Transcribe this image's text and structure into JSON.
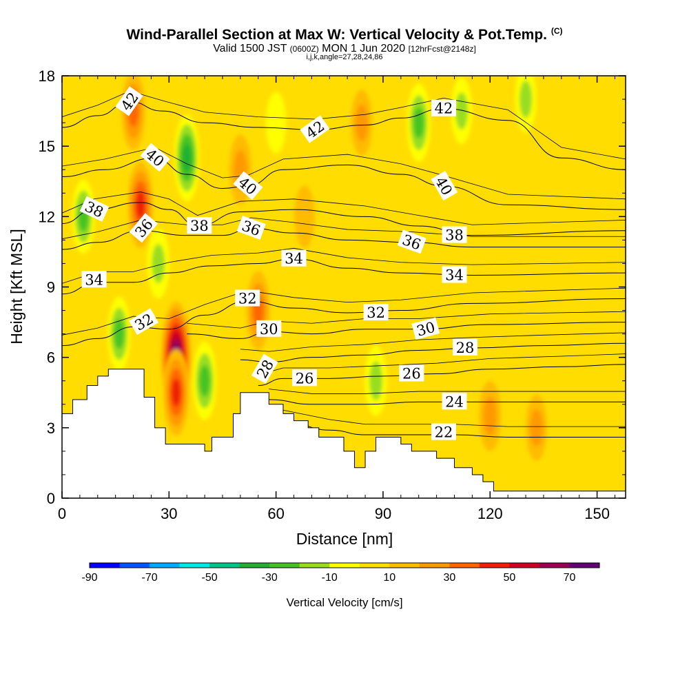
{
  "header": {
    "title": "Wind-Parallel Section at Max W: Vertical Velocity & Pot.Temp.",
    "title_units": "(C)",
    "valid_prefix": "Valid 1500 JST",
    "valid_utc": "(0600Z)",
    "valid_date": "MON 1 Jun 2020",
    "forecast_info": "[12hrFcst@2148z]",
    "section_params": "i,j,k,angle=27,28,24,86"
  },
  "chart_data": {
    "type": "heatmap",
    "xlabel": "Distance [nm]",
    "ylabel": "Height [Kft MSL]",
    "xlim": [
      0,
      158
    ],
    "ylim": [
      0,
      18
    ],
    "x_ticks": [
      "0",
      "30",
      "60",
      "90",
      "120",
      "150"
    ],
    "x_tick_values": [
      0,
      30,
      60,
      90,
      120,
      150
    ],
    "y_ticks": [
      "0",
      "3",
      "6",
      "9",
      "12",
      "15",
      "18"
    ],
    "y_tick_values": [
      0,
      3,
      6,
      9,
      12,
      15,
      18
    ],
    "fill_variable": "Vertical Velocity [cm/s]",
    "contour_variable": "Potential Temperature (C)",
    "colorbar": {
      "title": "Vertical Velocity [cm/s]",
      "tick_labels": [
        "-90",
        "-70",
        "-50",
        "-30",
        "-10",
        "10",
        "30",
        "50",
        "70"
      ],
      "tick_values": [
        -90,
        -70,
        -50,
        -30,
        -10,
        10,
        30,
        50,
        70
      ],
      "colors": [
        "#0000ff",
        "#0055ff",
        "#00aaff",
        "#00e5e5",
        "#00c48a",
        "#22b033",
        "#44c422",
        "#99dd22",
        "#ffff00",
        "#ffdd00",
        "#ffbb00",
        "#ff9900",
        "#ff6600",
        "#ee2200",
        "#cc0022",
        "#990055",
        "#660077"
      ]
    },
    "terrain_profile": {
      "x": [
        0,
        3,
        7,
        10,
        13,
        16,
        20,
        23,
        26,
        29,
        32,
        35,
        40,
        42,
        45,
        48,
        50,
        55,
        58,
        62,
        65,
        69,
        72,
        75,
        79,
        82,
        85,
        88,
        92,
        95,
        98,
        102,
        105,
        110,
        115,
        118,
        121,
        124,
        127,
        130,
        135,
        140,
        145,
        150,
        158
      ],
      "height_kft": [
        3.6,
        4.2,
        4.8,
        5.2,
        5.5,
        5.5,
        5.5,
        4.3,
        3.0,
        2.3,
        2.3,
        2.3,
        2.0,
        2.6,
        2.6,
        3.6,
        4.5,
        4.5,
        4.0,
        3.6,
        3.3,
        3.0,
        2.6,
        2.6,
        2.0,
        1.3,
        2.0,
        2.6,
        2.6,
        2.3,
        2.0,
        2.0,
        1.7,
        1.3,
        1.0,
        0.7,
        0.3,
        0.3,
        0.3,
        0.3,
        0.3,
        0.3,
        0.3,
        0.3,
        0.3
      ]
    },
    "velocity_features": [
      {
        "x": 32,
        "y": 6.0,
        "value": 75
      },
      {
        "x": 32,
        "y": 4.5,
        "value": 45
      },
      {
        "x": 22,
        "y": 12.5,
        "value": 45
      },
      {
        "x": 20,
        "y": 16.5,
        "value": 35
      },
      {
        "x": 55,
        "y": 8.0,
        "value": 35
      },
      {
        "x": 50,
        "y": 14.0,
        "value": 25
      },
      {
        "x": 120,
        "y": 3.5,
        "value": 25
      },
      {
        "x": 133,
        "y": 3.0,
        "value": 20
      },
      {
        "x": 84,
        "y": 16.0,
        "value": 20
      },
      {
        "x": 68,
        "y": 12.0,
        "value": 15
      },
      {
        "x": 35,
        "y": 14.5,
        "value": -45
      },
      {
        "x": 27,
        "y": 10.0,
        "value": -25
      },
      {
        "x": 40,
        "y": 5.0,
        "value": -35
      },
      {
        "x": 6,
        "y": 12.0,
        "value": -30
      },
      {
        "x": 16,
        "y": 7.0,
        "value": -30
      },
      {
        "x": 100,
        "y": 16.0,
        "value": -35
      },
      {
        "x": 112,
        "y": 16.5,
        "value": -20
      },
      {
        "x": 130,
        "y": 17.0,
        "value": -20
      },
      {
        "x": 88,
        "y": 5.0,
        "value": -25
      },
      {
        "x": 60,
        "y": 16.0,
        "value": -15
      }
    ],
    "contour_labels": [
      {
        "text": "42",
        "x": 19,
        "y": 16.9,
        "angle": -55
      },
      {
        "text": "40",
        "x": 26,
        "y": 14.5,
        "angle": 40
      },
      {
        "text": "38",
        "x": 9,
        "y": 12.3,
        "angle": 25
      },
      {
        "text": "36",
        "x": 23,
        "y": 11.5,
        "angle": -50
      },
      {
        "text": "34",
        "x": 9,
        "y": 9.3,
        "angle": 0
      },
      {
        "text": "32",
        "x": 23,
        "y": 7.5,
        "angle": -30
      },
      {
        "text": "38",
        "x": 38.5,
        "y": 11.6,
        "angle": 0
      },
      {
        "text": "40",
        "x": 52,
        "y": 13.3,
        "angle": 40
      },
      {
        "text": "36",
        "x": 53,
        "y": 11.5,
        "angle": 20
      },
      {
        "text": "42",
        "x": 71,
        "y": 15.7,
        "angle": -35
      },
      {
        "text": "32",
        "x": 52,
        "y": 8.5,
        "angle": 0
      },
      {
        "text": "34",
        "x": 65,
        "y": 10.2,
        "angle": 0
      },
      {
        "text": "30",
        "x": 58,
        "y": 7.2,
        "angle": 0
      },
      {
        "text": "28",
        "x": 57,
        "y": 5.5,
        "angle": -60
      },
      {
        "text": "26",
        "x": 68,
        "y": 5.1,
        "angle": 0
      },
      {
        "text": "32",
        "x": 88,
        "y": 7.9,
        "angle": 0
      },
      {
        "text": "36",
        "x": 98,
        "y": 10.9,
        "angle": 20
      },
      {
        "text": "42",
        "x": 107,
        "y": 16.6,
        "angle": 0
      },
      {
        "text": "40",
        "x": 107,
        "y": 13.3,
        "angle": 60
      },
      {
        "text": "38",
        "x": 110,
        "y": 11.2,
        "angle": 0
      },
      {
        "text": "34",
        "x": 110,
        "y": 9.5,
        "angle": 0
      },
      {
        "text": "30",
        "x": 102,
        "y": 7.2,
        "angle": -15
      },
      {
        "text": "28",
        "x": 113,
        "y": 6.4,
        "angle": 0
      },
      {
        "text": "26",
        "x": 98,
        "y": 5.3,
        "angle": 0
      },
      {
        "text": "24",
        "x": 110,
        "y": 4.1,
        "angle": 0
      },
      {
        "text": "22",
        "x": 107,
        "y": 2.8,
        "angle": 0
      }
    ],
    "isentropes": [
      {
        "value": 22,
        "points": [
          [
            62,
            3.3
          ],
          [
            75,
            2.9
          ],
          [
            85,
            2.7
          ],
          [
            95,
            2.7
          ],
          [
            110,
            2.7
          ],
          [
            125,
            2.6
          ],
          [
            140,
            2.6
          ],
          [
            158,
            2.6
          ]
        ]
      },
      {
        "value": 24,
        "points": [
          [
            58,
            4.2
          ],
          [
            70,
            4.0
          ],
          [
            85,
            4.0
          ],
          [
            100,
            4.1
          ],
          [
            115,
            4.1
          ],
          [
            130,
            4.1
          ],
          [
            158,
            4.1
          ]
        ]
      },
      {
        "value": 26,
        "points": [
          [
            55,
            4.8
          ],
          [
            62,
            5.1
          ],
          [
            75,
            5.1
          ],
          [
            90,
            5.2
          ],
          [
            105,
            5.3
          ],
          [
            120,
            5.5
          ],
          [
            140,
            5.6
          ],
          [
            158,
            5.7
          ]
        ]
      },
      {
        "value": 28,
        "points": [
          [
            50,
            5.9
          ],
          [
            58,
            5.8
          ],
          [
            70,
            6.0
          ],
          [
            85,
            6.1
          ],
          [
            100,
            6.3
          ],
          [
            115,
            6.4
          ],
          [
            135,
            6.5
          ],
          [
            158,
            6.6
          ]
        ]
      },
      {
        "value": 30,
        "points": [
          [
            35,
            7.0
          ],
          [
            50,
            6.8
          ],
          [
            58,
            7.1
          ],
          [
            70,
            7.0
          ],
          [
            85,
            7.2
          ],
          [
            100,
            7.2
          ],
          [
            120,
            7.4
          ],
          [
            158,
            7.5
          ]
        ]
      },
      {
        "value": 32,
        "points": [
          [
            0,
            6.5
          ],
          [
            10,
            6.8
          ],
          [
            20,
            7.3
          ],
          [
            30,
            7.2
          ],
          [
            40,
            7.8
          ],
          [
            52,
            8.4
          ],
          [
            65,
            8.1
          ],
          [
            80,
            7.9
          ],
          [
            95,
            8.0
          ],
          [
            115,
            8.3
          ],
          [
            158,
            8.5
          ]
        ]
      },
      {
        "value": 34,
        "points": [
          [
            0,
            8.7
          ],
          [
            10,
            9.2
          ],
          [
            20,
            9.2
          ],
          [
            30,
            9.6
          ],
          [
            42,
            9.9
          ],
          [
            55,
            10.0
          ],
          [
            65,
            10.2
          ],
          [
            80,
            9.8
          ],
          [
            95,
            9.6
          ],
          [
            115,
            9.5
          ],
          [
            158,
            9.6
          ]
        ]
      },
      {
        "value": 36,
        "points": [
          [
            0,
            10.6
          ],
          [
            10,
            10.9
          ],
          [
            22,
            11.4
          ],
          [
            35,
            11.2
          ],
          [
            45,
            11.2
          ],
          [
            53,
            11.5
          ],
          [
            65,
            11.3
          ],
          [
            80,
            11.0
          ],
          [
            98,
            10.9
          ],
          [
            115,
            10.7
          ],
          [
            158,
            10.7
          ]
        ]
      },
      {
        "value": 38,
        "points": [
          [
            0,
            11.7
          ],
          [
            9,
            12.3
          ],
          [
            22,
            12.6
          ],
          [
            30,
            12.3
          ],
          [
            38,
            11.6
          ],
          [
            50,
            12.2
          ],
          [
            65,
            12.3
          ],
          [
            85,
            12.0
          ],
          [
            100,
            11.6
          ],
          [
            115,
            11.2
          ],
          [
            158,
            11.4
          ]
        ]
      },
      {
        "value": 40,
        "points": [
          [
            0,
            13.7
          ],
          [
            12,
            14.0
          ],
          [
            26,
            14.5
          ],
          [
            35,
            13.8
          ],
          [
            45,
            13.2
          ],
          [
            52,
            13.3
          ],
          [
            62,
            14.0
          ],
          [
            80,
            14.2
          ],
          [
            95,
            13.8
          ],
          [
            107,
            13.3
          ],
          [
            125,
            12.5
          ],
          [
            158,
            12.3
          ]
        ]
      },
      {
        "value": 42,
        "points": [
          [
            0,
            15.8
          ],
          [
            10,
            16.3
          ],
          [
            19,
            16.9
          ],
          [
            28,
            16.5
          ],
          [
            40,
            16.0
          ],
          [
            55,
            15.8
          ],
          [
            71,
            15.7
          ],
          [
            85,
            15.9
          ],
          [
            95,
            16.2
          ],
          [
            107,
            16.6
          ],
          [
            125,
            16.1
          ],
          [
            140,
            14.5
          ],
          [
            158,
            14.0
          ]
        ]
      }
    ]
  }
}
